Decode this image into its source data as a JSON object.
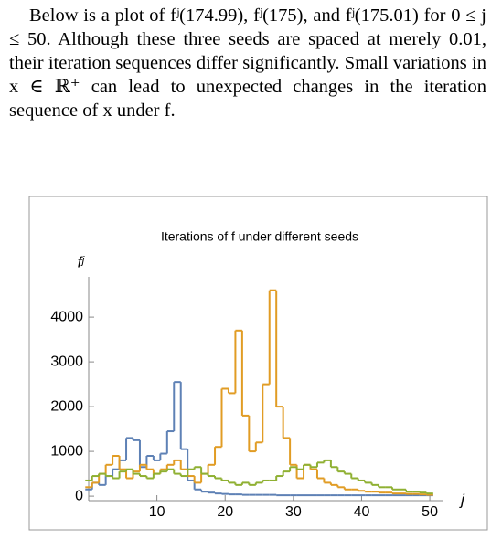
{
  "paragraph": "Below is a plot of fʲ(174.99), fʲ(175), and fʲ(175.01) for 0 ≤ j ≤ 50. Although these three seeds are spaced at merely 0.01, their iteration sequences differ significantly. Small variations in x ∈ ℝ⁺ can lead to unexpected changes in the iteration sequence of x under f.",
  "chart_data": {
    "type": "step",
    "title": "Iterations of f under different seeds",
    "xlabel": "j",
    "ylabel": "fʲ",
    "x": [
      0,
      1,
      2,
      3,
      4,
      5,
      6,
      7,
      8,
      9,
      10,
      11,
      12,
      13,
      14,
      15,
      16,
      17,
      18,
      19,
      20,
      21,
      22,
      23,
      24,
      25,
      26,
      27,
      28,
      29,
      30,
      31,
      32,
      33,
      34,
      35,
      36,
      37,
      38,
      39,
      40,
      41,
      42,
      43,
      44,
      45,
      46,
      47,
      48,
      49,
      50
    ],
    "series": [
      {
        "color": "#5e81b5",
        "values": [
          150,
          300,
          250,
          450,
          600,
          800,
          1300,
          1250,
          650,
          900,
          800,
          950,
          1450,
          2550,
          1050,
          350,
          150,
          100,
          80,
          60,
          50,
          40,
          40,
          30,
          30,
          30,
          30,
          30,
          20,
          20,
          20,
          20,
          20,
          20,
          20,
          20,
          20,
          20,
          20,
          20,
          20,
          20,
          20,
          20,
          20,
          20,
          20,
          20,
          20,
          20,
          20
        ]
      },
      {
        "color": "#e19c24",
        "values": [
          200,
          300,
          500,
          700,
          900,
          600,
          400,
          550,
          700,
          600,
          500,
          600,
          700,
          800,
          600,
          450,
          300,
          500,
          700,
          1100,
          2400,
          2300,
          3700,
          1800,
          1000,
          1200,
          2500,
          4600,
          2000,
          1300,
          700,
          400,
          700,
          600,
          400,
          300,
          250,
          200,
          150,
          150,
          120,
          100,
          100,
          80,
          80,
          60,
          60,
          50,
          50,
          40,
          30
        ]
      },
      {
        "color": "#8fb032",
        "values": [
          350,
          450,
          500,
          450,
          400,
          550,
          600,
          500,
          450,
          400,
          500,
          550,
          600,
          500,
          450,
          600,
          650,
          500,
          450,
          400,
          350,
          300,
          250,
          300,
          250,
          300,
          350,
          350,
          450,
          550,
          650,
          600,
          700,
          650,
          750,
          800,
          650,
          550,
          500,
          400,
          350,
          300,
          250,
          200,
          200,
          150,
          150,
          100,
          100,
          80,
          60
        ]
      }
    ],
    "xlim": [
      0,
      52
    ],
    "ylim": [
      -100,
      4900
    ],
    "xticks": [
      10,
      20,
      30,
      40,
      50
    ],
    "yticks": [
      0,
      1000,
      2000,
      3000,
      4000
    ]
  }
}
